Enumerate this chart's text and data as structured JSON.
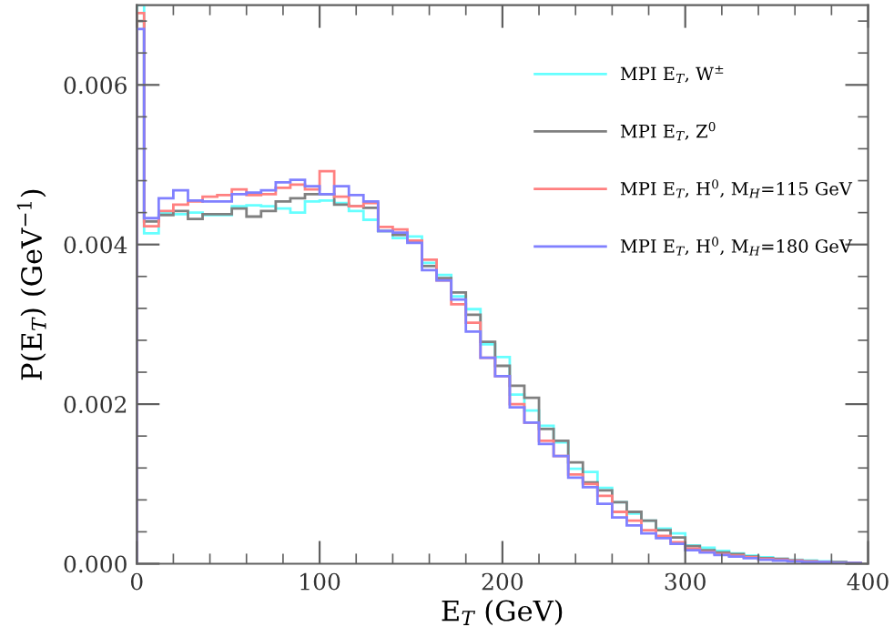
{
  "chart_data": {
    "type": "histogram",
    "xlabel": "E$_{T}$ (GeV)",
    "ylabel": "P(E$_{T}$) (GeV$^{−1}$)",
    "bins": [
      0,
      4,
      12,
      20,
      28,
      36,
      44,
      52,
      60,
      68,
      76,
      84,
      92,
      100,
      108,
      116,
      124,
      132,
      140,
      148,
      156,
      164,
      172,
      180,
      188,
      196,
      204,
      212,
      220,
      228,
      236,
      244,
      252,
      260,
      268,
      276,
      284,
      292,
      300,
      308,
      316,
      324,
      332,
      340,
      348,
      356,
      364,
      372,
      380,
      388,
      396
    ],
    "series": [
      {
        "name": "MPI E$_{T}$, W$^{±}$",
        "color": "#66ffff",
        "values": [
          0.007,
          0.00414,
          0.0044,
          0.00438,
          0.0044,
          0.00437,
          0.00437,
          0.00448,
          0.00449,
          0.00448,
          0.00445,
          0.0044,
          0.00454,
          0.00455,
          0.00452,
          0.00442,
          0.00431,
          0.00417,
          0.00408,
          0.0041,
          0.00377,
          0.00362,
          0.00335,
          0.00319,
          0.00275,
          0.00259,
          0.00212,
          0.00192,
          0.00173,
          0.00152,
          0.00119,
          0.00115,
          0.00095,
          0.00077,
          0.00063,
          0.00054,
          0.00044,
          0.00038,
          0.00023,
          0.0002,
          0.00016,
          0.00013,
          0.0001,
          8e-05,
          6e-05,
          5e-05,
          4e-05,
          3e-05,
          2e-05,
          1e-05
        ]
      },
      {
        "name": "MPI E$_{T}$, Z$^{0}$",
        "color": "#808080",
        "values": [
          0.0068,
          0.00429,
          0.00437,
          0.00442,
          0.00432,
          0.00438,
          0.00438,
          0.00445,
          0.00435,
          0.00442,
          0.00454,
          0.00458,
          0.00463,
          0.00463,
          0.0045,
          0.00448,
          0.00446,
          0.00417,
          0.00412,
          0.00405,
          0.00373,
          0.00358,
          0.0034,
          0.00312,
          0.00278,
          0.00248,
          0.00223,
          0.00208,
          0.00169,
          0.00154,
          0.00127,
          0.00102,
          0.00092,
          0.00077,
          0.00065,
          0.00054,
          0.00042,
          0.00033,
          0.00022,
          0.00017,
          0.00014,
          0.00012,
          9e-05,
          7e-05,
          6e-05,
          4e-05,
          3e-05,
          2e-05,
          2e-05,
          1e-05
        ]
      },
      {
        "name": "MPI E$_{T}$, H$^{0}$, M$_{H}$=115 GeV",
        "color": "#ff8080",
        "values": [
          0.0069,
          0.00423,
          0.00442,
          0.0045,
          0.00454,
          0.0046,
          0.00462,
          0.00469,
          0.00462,
          0.00463,
          0.00471,
          0.00475,
          0.00469,
          0.00492,
          0.0046,
          0.00448,
          0.00452,
          0.00422,
          0.00419,
          0.00405,
          0.00381,
          0.00355,
          0.00325,
          0.00302,
          0.00258,
          0.00235,
          0.002,
          0.00177,
          0.00154,
          0.00135,
          0.00112,
          0.001,
          0.00085,
          0.00065,
          0.00054,
          0.00042,
          0.00035,
          0.00027,
          0.00019,
          0.00015,
          0.00012,
          0.0001,
          8e-05,
          6e-05,
          5e-05,
          4e-05,
          3e-05,
          2e-05,
          1e-05,
          1e-05
        ]
      },
      {
        "name": "MPI E$_{T}$, H$^{0}$, M$_{H}$=180 GeV",
        "color": "#8080ff",
        "values": [
          0.0067,
          0.00433,
          0.00458,
          0.00468,
          0.00455,
          0.00454,
          0.00454,
          0.00463,
          0.00465,
          0.00468,
          0.00478,
          0.00481,
          0.00473,
          0.00463,
          0.00473,
          0.00462,
          0.00454,
          0.00417,
          0.00415,
          0.00402,
          0.00368,
          0.00355,
          0.00331,
          0.00291,
          0.00258,
          0.00235,
          0.00196,
          0.00177,
          0.0015,
          0.00135,
          0.00108,
          0.00096,
          0.00075,
          0.00058,
          0.00048,
          0.00038,
          0.00032,
          0.00025,
          0.00017,
          0.00014,
          0.00011,
          9e-05,
          7e-05,
          5e-05,
          4e-05,
          3e-05,
          2e-05,
          2e-05,
          1e-05,
          1e-05
        ]
      }
    ],
    "xlim": [
      0,
      400
    ],
    "xticks": [
      0,
      {
        "value": 20,
        "label": null
      },
      {
        "value": 40,
        "label": null
      },
      {
        "value": 60,
        "label": null
      },
      {
        "value": 80,
        "label": null
      },
      100,
      {
        "value": 120,
        "label": null
      },
      {
        "value": 140,
        "label": null
      },
      {
        "value": 160,
        "label": null
      },
      {
        "value": 180,
        "label": null
      },
      200,
      {
        "value": 220,
        "label": null
      },
      {
        "value": 240,
        "label": null
      },
      {
        "value": 260,
        "label": null
      },
      {
        "value": 280,
        "label": null
      },
      300,
      {
        "value": 320,
        "label": null
      },
      {
        "value": 340,
        "label": null
      },
      {
        "value": 360,
        "label": null
      },
      {
        "value": 380,
        "label": null
      },
      400
    ],
    "ylim": [
      0,
      0.007
    ],
    "yticks": [
      {
        "value": 0,
        "label": "0.000"
      },
      {
        "value": 0.0004,
        "label": null
      },
      {
        "value": 0.0008,
        "label": null
      },
      {
        "value": 0.0012,
        "label": null
      },
      {
        "value": 0.0016,
        "label": null
      },
      {
        "value": 0.002,
        "label": "0.002"
      },
      {
        "value": 0.0024,
        "label": null
      },
      {
        "value": 0.0028,
        "label": null
      },
      {
        "value": 0.0032,
        "label": null
      },
      {
        "value": 0.0036,
        "label": null
      },
      {
        "value": 0.004,
        "label": "0.004"
      },
      {
        "value": 0.0044,
        "label": null
      },
      {
        "value": 0.0048,
        "label": null
      },
      {
        "value": 0.0052,
        "label": null
      },
      {
        "value": 0.0056,
        "label": null
      },
      {
        "value": 0.006,
        "label": "0.006"
      },
      {
        "value": 0.0064,
        "label": null
      },
      {
        "value": 0.0068,
        "label": null
      }
    ],
    "grid": false,
    "legend": "right"
  }
}
